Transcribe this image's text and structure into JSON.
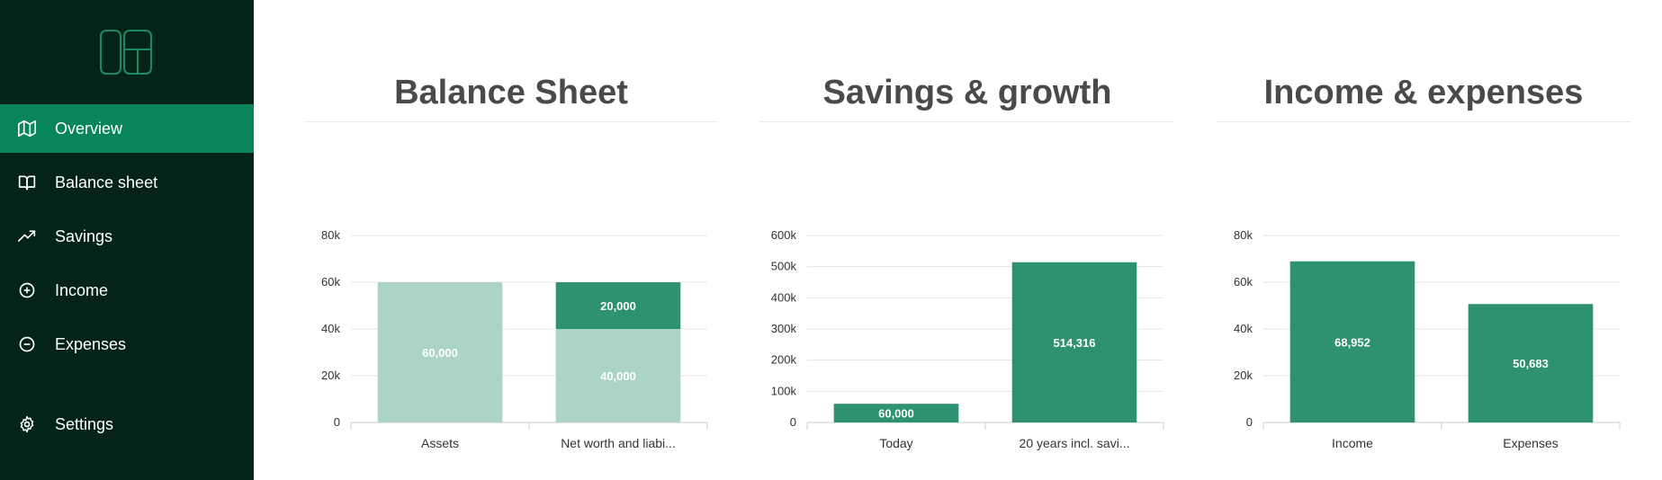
{
  "sidebar": {
    "items": [
      {
        "label": "Overview",
        "icon": "map-icon",
        "active": true
      },
      {
        "label": "Balance sheet",
        "icon": "book-icon",
        "active": false
      },
      {
        "label": "Savings",
        "icon": "trending-up-icon",
        "active": false
      },
      {
        "label": "Income",
        "icon": "plus-circle-icon",
        "active": false
      },
      {
        "label": "Expenses",
        "icon": "minus-circle-icon",
        "active": false
      },
      {
        "label": "Settings",
        "icon": "gear-icon",
        "active": false
      }
    ]
  },
  "colors": {
    "sidebar_bg": "#04241a",
    "active_bg": "#08865a",
    "bar_dark": "#2e9170",
    "bar_light": "#acd4c5",
    "title_text": "#4a4a4a"
  },
  "chart_data": [
    {
      "type": "bar",
      "stacked": true,
      "title": "Balance Sheet",
      "categories": [
        "Assets",
        "Net worth and liabi..."
      ],
      "series": [
        {
          "values": [
            60000,
            40000
          ],
          "color": "#acd4c5",
          "labels": [
            "60,000",
            "40,000"
          ]
        },
        {
          "values": [
            0,
            20000
          ],
          "color": "#2e9170",
          "labels": [
            "",
            "20,000"
          ]
        }
      ],
      "ylim": [
        0,
        80000
      ],
      "yticks": [
        0,
        20000,
        40000,
        60000,
        80000
      ],
      "ytick_labels": [
        "0",
        "20k",
        "40k",
        "60k",
        "80k"
      ],
      "grid": true,
      "legend": "none"
    },
    {
      "type": "bar",
      "stacked": false,
      "title": "Savings & growth",
      "categories": [
        "Today",
        "20 years incl. savi..."
      ],
      "series": [
        {
          "values": [
            60000,
            514316
          ],
          "color": "#2e9170",
          "labels": [
            "60,000",
            "514,316"
          ]
        }
      ],
      "ylim": [
        0,
        600000
      ],
      "yticks": [
        0,
        100000,
        200000,
        300000,
        400000,
        500000,
        600000
      ],
      "ytick_labels": [
        "0",
        "100k",
        "200k",
        "300k",
        "400k",
        "500k",
        "600k"
      ],
      "grid": true,
      "legend": "none"
    },
    {
      "type": "bar",
      "stacked": false,
      "title": "Income & expenses",
      "categories": [
        "Income",
        "Expenses"
      ],
      "series": [
        {
          "values": [
            68952,
            50683
          ],
          "color": "#2e9170",
          "labels": [
            "68,952",
            "50,683"
          ]
        }
      ],
      "ylim": [
        0,
        80000
      ],
      "yticks": [
        0,
        20000,
        40000,
        60000,
        80000
      ],
      "ytick_labels": [
        "0",
        "20k",
        "40k",
        "60k",
        "80k"
      ],
      "grid": true,
      "legend": "none"
    }
  ]
}
